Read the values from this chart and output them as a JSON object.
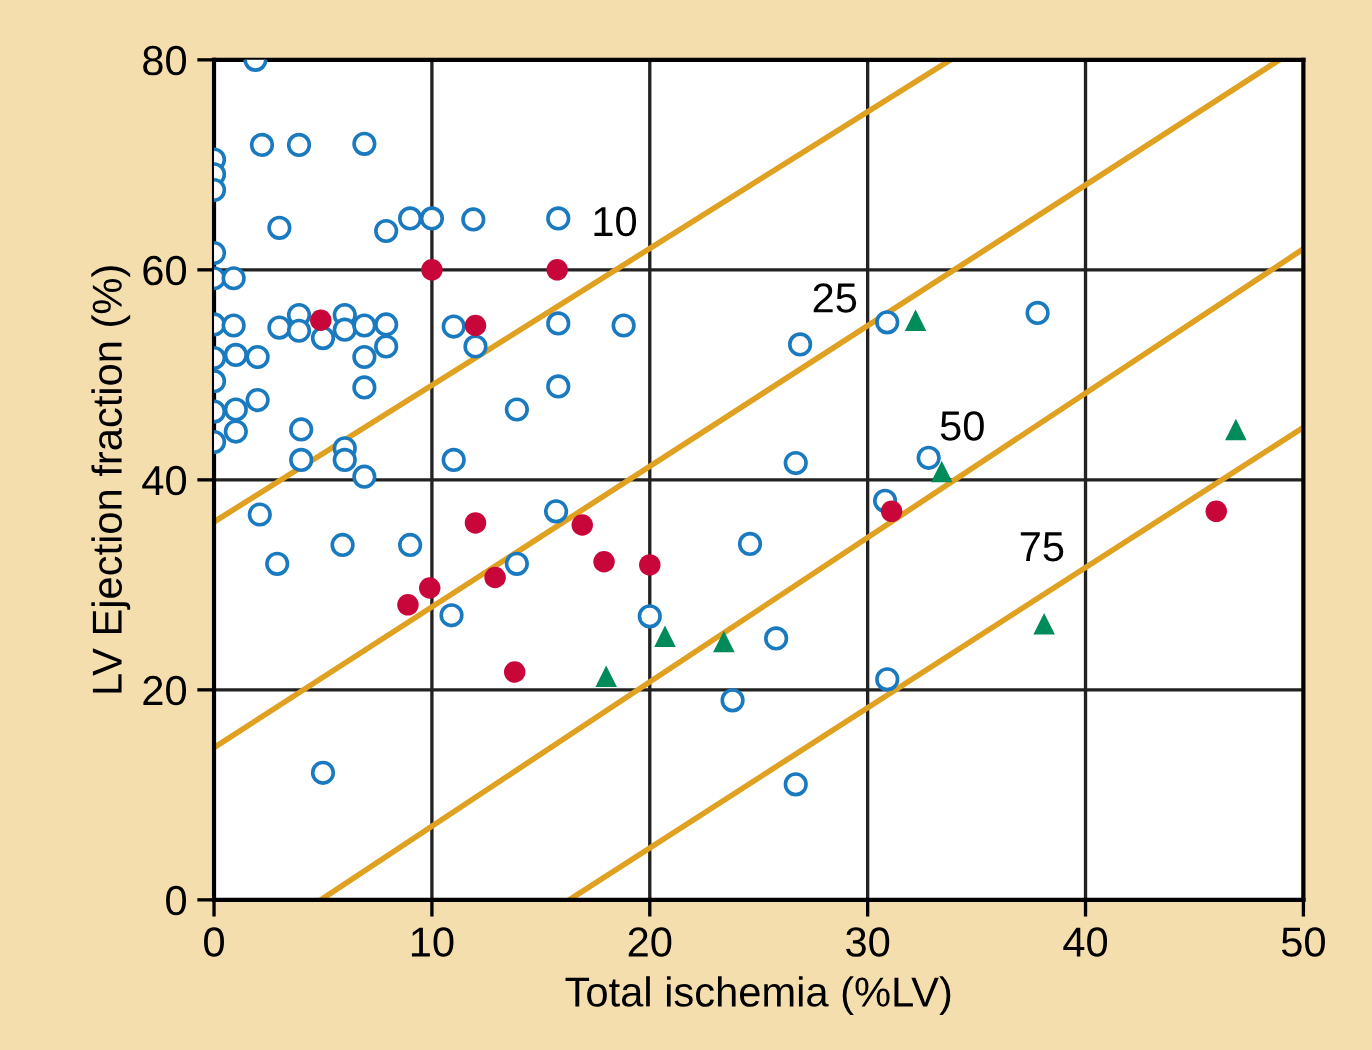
{
  "chart_data": {
    "type": "scatter",
    "xlabel": "Total ischemia (%LV)",
    "ylabel": "LV Ejection fraction (%)",
    "xlim": [
      0,
      50
    ],
    "ylim": [
      0,
      80
    ],
    "xticks": [
      0,
      10,
      20,
      30,
      40,
      50
    ],
    "yticks": [
      0,
      20,
      40,
      60,
      80
    ],
    "grid": true,
    "legend": false,
    "series": [
      {
        "type": "line",
        "name": "10",
        "color": "#e0a020",
        "marker": "none",
        "x": [
          0,
          33.8
        ],
        "values": [
          36,
          80
        ]
      },
      {
        "type": "line",
        "name": "25",
        "color": "#e0a020",
        "marker": "none",
        "x": [
          0,
          48.9
        ],
        "values": [
          14.5,
          80
        ]
      },
      {
        "type": "line",
        "name": "50",
        "color": "#e0a020",
        "marker": "none",
        "x": [
          4.9,
          50
        ],
        "values": [
          0,
          62
        ]
      },
      {
        "type": "line",
        "name": "75",
        "color": "#e0a020",
        "marker": "none",
        "x": [
          16.3,
          50
        ],
        "values": [
          0,
          45
        ]
      },
      {
        "color": "#1a7abf",
        "marker": "circle",
        "x": [
          1.9,
          2.2,
          3.9,
          6.9,
          0,
          0,
          0,
          3.0,
          7.9,
          9.0,
          10,
          11.9,
          15.8,
          0,
          0,
          0.9,
          0,
          0.9,
          3.0,
          3.9,
          3.9,
          6.0,
          6.0,
          5.0,
          6.9,
          7.9,
          7.9,
          6.9,
          6.9,
          11.0,
          12.0,
          15.8,
          15.8,
          13.9,
          0,
          1.0,
          2.0,
          0,
          0,
          1.0,
          2.0,
          1.0,
          0,
          4.0,
          4.0,
          6.0,
          6.0,
          6.9,
          11.0,
          2.1,
          2.9,
          5.9,
          9.0,
          10.9,
          15.7,
          13.9,
          5.0,
          24.6,
          20.0,
          25.8,
          23.8,
          26.7,
          30.8,
          30.9,
          26.7,
          32.8,
          26.9,
          30.9,
          18.8,
          37.8
        ],
        "values": [
          80,
          71.9,
          71.9,
          72,
          70.5,
          69.1,
          67.6,
          64,
          63.7,
          64.9,
          64.9,
          64.8,
          64.9,
          61.6,
          59.2,
          59.2,
          54.8,
          54.7,
          54.5,
          55.7,
          54.2,
          55.7,
          54.3,
          53.5,
          54.7,
          54.8,
          52.7,
          51.7,
          48.8,
          54.6,
          52.7,
          54.9,
          48.9,
          46.7,
          51.6,
          51.9,
          51.7,
          49.4,
          46.5,
          46.7,
          47.6,
          44.6,
          43.6,
          44.8,
          41.9,
          43.0,
          41.9,
          40.3,
          41.9,
          36.7,
          32.0,
          33.8,
          33.8,
          27.1,
          37.0,
          32.0,
          12.1,
          33.9,
          27.0,
          24.9,
          19.0,
          11.0,
          38.0,
          21.0,
          41.6,
          42.1,
          52.9,
          55.0,
          54.7,
          55.9
        ]
      },
      {
        "color": "#c8063a",
        "marker": "circle",
        "x": [
          10,
          15.75,
          4.9,
          12.0,
          12.0,
          9.9,
          8.9,
          12.9,
          13.8,
          16.9,
          17.9,
          20.0,
          31.1,
          46.0
        ],
        "values": [
          60,
          60,
          55.2,
          54.7,
          35.9,
          29.7,
          28.1,
          30.7,
          21.7,
          35.7,
          32.2,
          31.9,
          37.0,
          37.0
        ]
      },
      {
        "color": "#008c5a",
        "marker": "triangle",
        "x": [
          20.7,
          23.4,
          18.0,
          33.4,
          32.2,
          46.9,
          38.1
        ],
        "values": [
          25.1,
          24.6,
          21.3,
          40.8,
          55.2,
          44.8,
          26.3
        ]
      }
    ]
  }
}
